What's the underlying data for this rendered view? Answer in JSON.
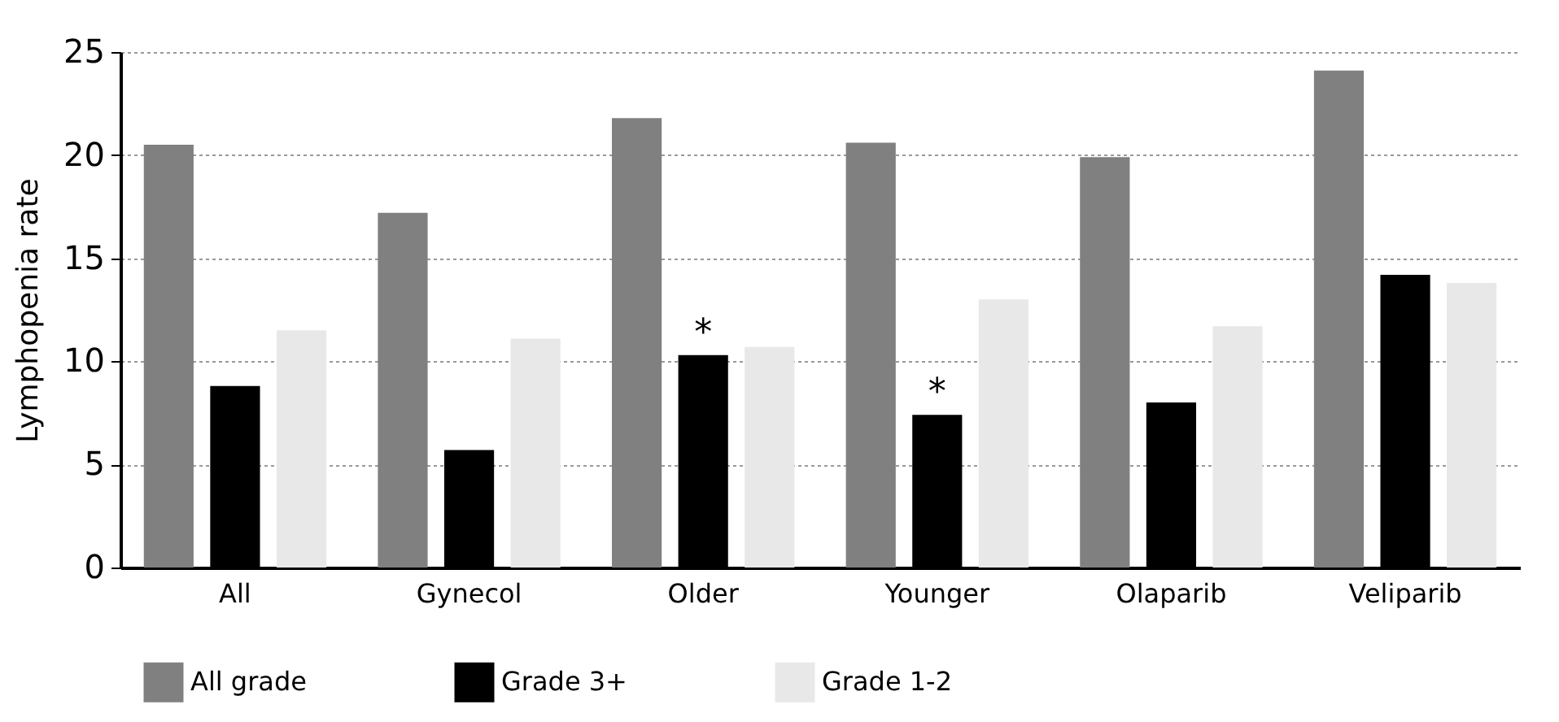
{
  "chart_data": {
    "type": "bar",
    "ylabel": "Lymphopenia rate",
    "categories": [
      "All",
      "Gynecol",
      "Older",
      "Younger",
      "Olaparib",
      "Veliparib"
    ],
    "series": [
      {
        "name": "All grade",
        "color": "#808080",
        "values": [
          20.5,
          17.2,
          21.8,
          20.6,
          19.9,
          24.1
        ]
      },
      {
        "name": "Grade 3+",
        "color": "#000000",
        "values": [
          8.8,
          5.7,
          10.3,
          7.4,
          8.0,
          14.2
        ]
      },
      {
        "name": "Grade 1-2",
        "color": "#e8e8e8",
        "values": [
          11.5,
          11.1,
          10.7,
          13.0,
          11.7,
          13.8
        ]
      }
    ],
    "annotations": [
      {
        "text": "*",
        "x": "Older",
        "y": 10.3
      },
      {
        "text": "*",
        "x": "Younger",
        "y": 7.4
      }
    ],
    "ylim": [
      0,
      25
    ],
    "yticks": [
      0,
      5,
      10,
      15,
      20,
      25
    ],
    "grid": "y",
    "legend": "bottom"
  }
}
